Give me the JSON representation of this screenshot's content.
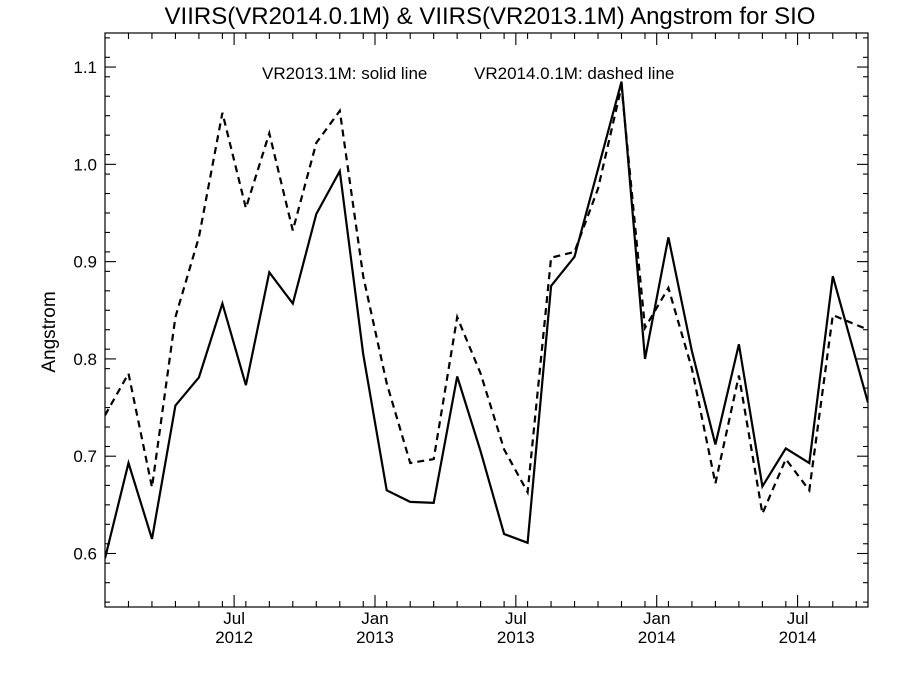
{
  "chart_data": {
    "type": "line",
    "title": "VIIRS(VR2014.0.1M) & VIIRS(VR2013.1M)  Angstrom for SIO",
    "ylabel": "Angstrom",
    "xlabel": "",
    "annotation_solid": "VR2013.1M: solid line",
    "annotation_dashed": "VR2014.0.1M: dashed line",
    "xlim": [
      0,
      32.5
    ],
    "ylim": [
      0.545,
      1.135
    ],
    "y_ticks": [
      0.6,
      0.7,
      0.8,
      0.9,
      1.0,
      1.1
    ],
    "y_tick_labels": [
      "0.6",
      "0.7",
      "0.8",
      "0.9",
      "1.0",
      "1.1"
    ],
    "x_tick_labels": [
      {
        "month": "Jul",
        "year": "2012",
        "x": 5.5
      },
      {
        "month": "Jan",
        "year": "2013",
        "x": 11.5
      },
      {
        "month": "Jul",
        "year": "2013",
        "x": 17.5
      },
      {
        "month": "Jan",
        "year": "2014",
        "x": 23.5
      },
      {
        "month": "Jul",
        "year": "2014",
        "x": 29.5
      }
    ],
    "minor_ticks_x": [
      1,
      2,
      3,
      4,
      5,
      6,
      7,
      8,
      9,
      10,
      11,
      12,
      13,
      14,
      15,
      16,
      17,
      18,
      19,
      20,
      21,
      22,
      23,
      24,
      25,
      26,
      27,
      28,
      29,
      30,
      31,
      32
    ],
    "grid": false,
    "series": [
      {
        "name": "VR2013.1M",
        "style": "solid",
        "color": "#000000",
        "x": [
          0,
          1,
          2,
          3,
          4,
          5,
          6,
          7,
          8,
          9,
          10,
          11,
          12,
          13,
          14,
          15,
          16,
          17,
          18,
          19,
          20,
          21,
          22,
          23,
          24,
          25,
          26,
          27,
          28,
          29,
          30,
          31,
          32.5
        ],
        "values": [
          0.595,
          0.693,
          0.615,
          0.752,
          0.781,
          0.857,
          0.773,
          0.889,
          0.857,
          0.949,
          0.993,
          0.805,
          0.665,
          0.653,
          0.652,
          0.782,
          0.705,
          0.62,
          0.611,
          0.875,
          0.905,
          0.995,
          1.085,
          0.8,
          0.925,
          0.808,
          0.712,
          0.815,
          0.669,
          0.708,
          0.693,
          0.885,
          0.755
        ]
      },
      {
        "name": "VR2014.0.1M",
        "style": "dashed",
        "color": "#000000",
        "x": [
          0,
          1,
          2,
          3,
          4,
          5,
          6,
          7,
          8,
          9,
          10,
          11,
          12,
          13,
          14,
          15,
          16,
          17,
          18,
          19,
          20,
          21,
          22,
          23,
          24,
          25,
          26,
          27,
          28,
          29,
          30,
          31,
          32.5
        ],
        "values": [
          0.742,
          0.785,
          0.668,
          0.843,
          0.925,
          1.053,
          0.955,
          1.032,
          0.932,
          1.022,
          1.055,
          0.885,
          0.775,
          0.693,
          0.697,
          0.843,
          0.785,
          0.707,
          0.663,
          0.904,
          0.91,
          0.975,
          1.08,
          0.832,
          0.873,
          0.79,
          0.672,
          0.783,
          0.641,
          0.697,
          0.665,
          0.845,
          0.83
        ]
      }
    ]
  }
}
